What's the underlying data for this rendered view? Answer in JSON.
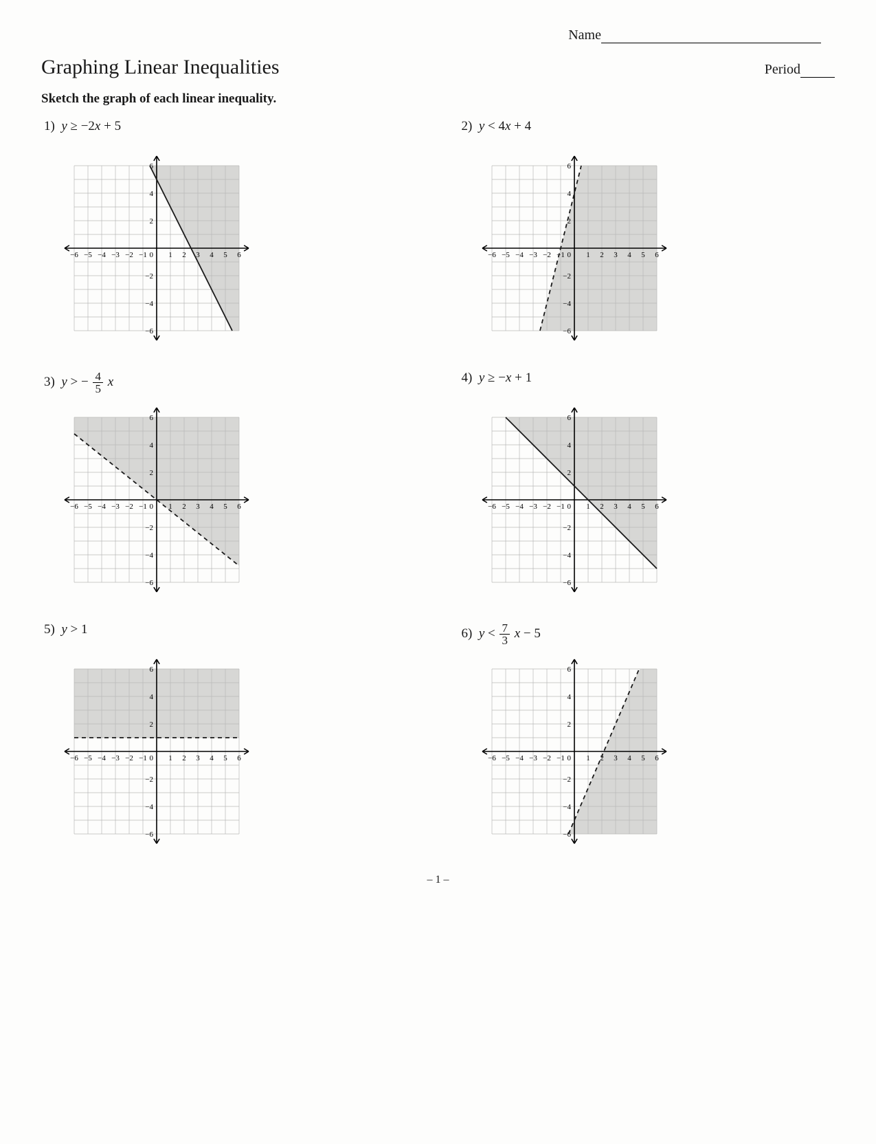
{
  "header": {
    "name_label": "Name",
    "period_label": "Period"
  },
  "title": "Graphing Linear Inequalities",
  "instruction": "Sketch the graph of each linear inequality.",
  "footer": "– 1 –",
  "graph_style": {
    "xmin": -6.5,
    "xmax": 6.5,
    "ymin": -6.5,
    "ymax": 6.5,
    "grid_min": -6,
    "grid_max": 6,
    "xticks": [
      -6,
      -5,
      -4,
      -3,
      -2,
      -1,
      1,
      2,
      3,
      4,
      5,
      6
    ],
    "yticks": [
      -6,
      -4,
      -2,
      2,
      4,
      6
    ],
    "grid_color": "#b8b8b8",
    "axis_color": "#000000",
    "shade_color": "#d7d7d5",
    "line_color": "#1a1a1a",
    "tick_fontsize": 11,
    "px": 240,
    "line_width": 1.8,
    "dash": "6,5"
  },
  "problems": [
    {
      "num": "1)",
      "expr_html": "<i>y</i> ≥ −2<i>x</i> + 5",
      "slope": -2,
      "intercept": 5,
      "dashed": false,
      "shade": "above"
    },
    {
      "num": "2)",
      "expr_html": "<i>y</i> < 4<i>x</i> + 4",
      "slope": 4,
      "intercept": 4,
      "dashed": true,
      "shade": "below"
    },
    {
      "num": "3)",
      "expr_html": "<i>y</i> > − <span class=\"frac\"><span class=\"num\">4</span><span class=\"den\">5</span></span> <i>x</i>",
      "slope": -0.8,
      "intercept": 0,
      "dashed": true,
      "shade": "above"
    },
    {
      "num": "4)",
      "expr_html": "<i>y</i> ≥ −<i>x</i> + 1",
      "slope": -1,
      "intercept": 1,
      "dashed": false,
      "shade": "above"
    },
    {
      "num": "5)",
      "expr_html": "<i>y</i> > 1",
      "slope": 0,
      "intercept": 1,
      "dashed": true,
      "shade": "above"
    },
    {
      "num": "6)",
      "expr_html": "<i>y</i> < <span class=\"frac\"><span class=\"num\">7</span><span class=\"den\">3</span></span> <i>x</i> − 5",
      "slope": 2.3333333,
      "intercept": -5,
      "dashed": true,
      "shade": "below"
    }
  ]
}
